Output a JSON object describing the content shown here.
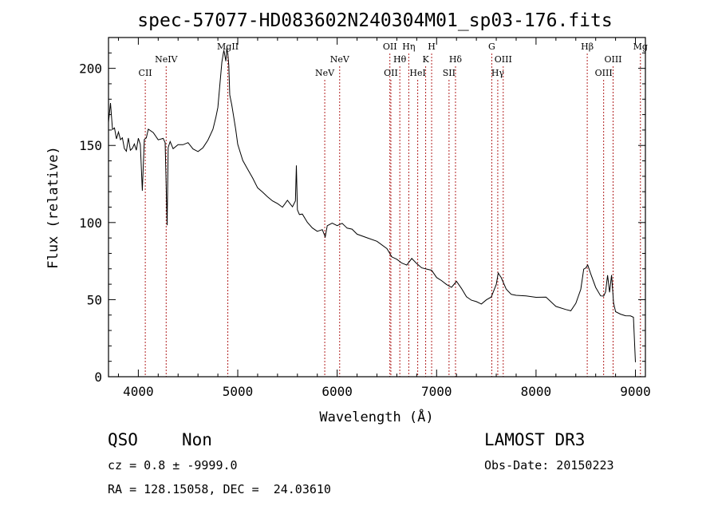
{
  "chart_data": {
    "type": "line",
    "title": "spec-57077-HD083602N240304M01_sp03-176.fits",
    "xlabel": "Wavelength (Å)",
    "ylabel": "Flux (relative)",
    "xlim": [
      3700,
      9100
    ],
    "ylim": [
      0,
      220
    ],
    "x_ticks": [
      4000,
      5000,
      6000,
      7000,
      8000,
      9000
    ],
    "y_ticks": [
      0,
      50,
      100,
      150,
      200
    ],
    "grid": false,
    "series": [
      {
        "x": [
          3700,
          3720,
          3740,
          3760,
          3780,
          3800,
          3820,
          3840,
          3860,
          3880,
          3900,
          3920,
          3940,
          3960,
          3980,
          4000,
          4020,
          4040,
          4060,
          4080,
          4100,
          4150,
          4200,
          4250,
          4270,
          4290,
          4300,
          4320,
          4350,
          4400,
          4450,
          4500,
          4550,
          4600,
          4650,
          4700,
          4750,
          4780,
          4800,
          4820,
          4840,
          4860,
          4880,
          4890,
          4900,
          4910,
          4920,
          4940,
          4960,
          4980,
          5000,
          5050,
          5100,
          5150,
          5200,
          5250,
          5300,
          5350,
          5400,
          5450,
          5500,
          5550,
          5580,
          5590,
          5600,
          5620,
          5650,
          5700,
          5750,
          5800,
          5850,
          5880,
          5900,
          5950,
          6000,
          6050,
          6100,
          6150,
          6200,
          6300,
          6400,
          6500,
          6550,
          6600,
          6650,
          6700,
          6750,
          6800,
          6850,
          6900,
          6950,
          7000,
          7050,
          7100,
          7150,
          7200,
          7250,
          7300,
          7350,
          7400,
          7450,
          7500,
          7550,
          7600,
          7620,
          7650,
          7700,
          7750,
          7800,
          7900,
          8000,
          8100,
          8200,
          8300,
          8350,
          8400,
          8450,
          8480,
          8500,
          8520,
          8550,
          8600,
          8650,
          8680,
          8700,
          8720,
          8740,
          8760,
          8780,
          8800,
          8850,
          8900,
          8950,
          8980,
          9000
        ],
        "y": [
          165,
          172,
          160,
          158,
          152,
          156,
          150,
          154,
          152,
          149,
          155,
          148,
          153,
          151,
          148,
          152,
          145,
          118,
          150,
          153,
          156,
          155,
          152,
          156,
          154,
          100,
          150,
          155,
          150,
          152,
          148,
          150,
          147,
          145,
          148,
          152,
          158,
          166,
          176,
          190,
          205,
          212,
          206,
          215,
          210,
          200,
          182,
          175,
          168,
          160,
          150,
          140,
          135,
          130,
          124,
          120,
          118,
          116,
          114,
          112,
          114,
          110,
          112,
          137,
          108,
          105,
          104,
          102,
          98,
          96,
          97,
          92,
          100,
          102,
          100,
          98,
          96,
          94,
          92,
          90,
          86,
          82,
          80,
          78,
          76,
          74,
          78,
          75,
          72,
          70,
          67,
          64,
          61,
          58,
          56,
          60,
          55,
          54,
          52,
          50,
          49,
          50,
          54,
          62,
          66,
          62,
          56,
          52,
          51,
          50,
          51,
          50,
          48,
          46,
          44,
          49,
          58,
          70,
          72,
          70,
          66,
          56,
          50,
          52,
          55,
          64,
          54,
          68,
          48,
          44,
          42,
          40,
          40,
          41,
          8
        ]
      }
    ]
  },
  "lines": [
    {
      "label": "CII",
      "x": 4070,
      "row": 2
    },
    {
      "label": "NeIV",
      "x": 4280,
      "row": 1
    },
    {
      "label": "MgII",
      "x": 4900,
      "row": 0
    },
    {
      "label": "NeV",
      "x": 5875,
      "row": 2
    },
    {
      "label": "NeV",
      "x": 6025,
      "row": 1
    },
    {
      "label": "OII",
      "x": 6530,
      "row": 0
    },
    {
      "label": "OII",
      "x": 6540,
      "row": 2
    },
    {
      "label": "Hθ",
      "x": 6630,
      "row": 1
    },
    {
      "label": "Hη",
      "x": 6720,
      "row": 0
    },
    {
      "label": "HeI",
      "x": 6810,
      "row": 2
    },
    {
      "label": "K",
      "x": 6890,
      "row": 1
    },
    {
      "label": "H",
      "x": 6950,
      "row": 0
    },
    {
      "label": "SII",
      "x": 7125,
      "row": 2
    },
    {
      "label": "Hδ",
      "x": 7190,
      "row": 1
    },
    {
      "label": "G",
      "x": 7555,
      "row": 0
    },
    {
      "label": "Hγ",
      "x": 7615,
      "row": 2
    },
    {
      "label": "OIII",
      "x": 7670,
      "row": 1
    },
    {
      "label": "Hβ",
      "x": 8515,
      "row": 0
    },
    {
      "label": "OIII",
      "x": 8680,
      "row": 2
    },
    {
      "label": "OIII",
      "x": 8775,
      "row": 1
    },
    {
      "label": "Mg",
      "x": 9050,
      "row": 0
    }
  ],
  "info": {
    "class": "QSO",
    "subclass": "Non",
    "survey": "LAMOST DR3",
    "cz": "cz = 0.8 ± -9999.0",
    "obsdate": "Obs-Date: 20150223",
    "coords": "RA = 128.15058, DEC =  24.03610"
  },
  "colors": {
    "line": "#000000",
    "marker": "#b22222",
    "background": "#ffffff"
  }
}
